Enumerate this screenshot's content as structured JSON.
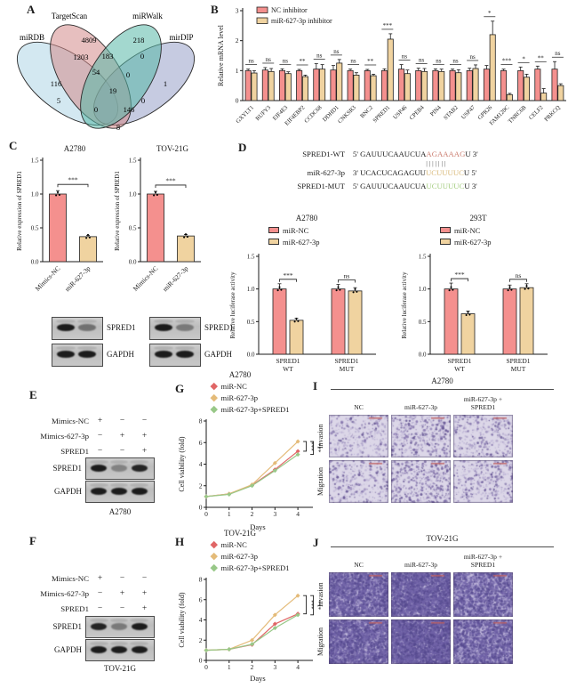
{
  "colors": {
    "pink": "#f4908e",
    "tan": "#f0d3a0",
    "line_nc": "#e06666",
    "line_mir": "#e4bb79",
    "line_spred": "#98c888",
    "venn_targetscan": "#d48a8a",
    "venn_mirwalk": "#58b8a8",
    "venn_mirdb": "#aed6e6",
    "venn_mirdip": "#98a0c8",
    "seq_red": "#cc7f72",
    "seq_tan": "#d9b877",
    "seq_green": "#a3cc7e",
    "scalebar": "#c06060"
  },
  "panelA": {
    "label": "A",
    "sets": {
      "targetscan": "TargetScan",
      "mirwalk": "miRWalk",
      "mirdb": "miRDB",
      "mirdip": "mirDIP"
    },
    "counts": {
      "ts": "4809",
      "walk": "218",
      "ts_db": "1203",
      "ts_walk": "183",
      "walk_dip": "0",
      "db": "116",
      "ts_db_walk": "54",
      "ts_walk_dip": "0",
      "dip": "1",
      "all": "19",
      "db_walk": "5",
      "db_walk_dip": "0",
      "ts_db_dip": "146",
      "ts_dip": "0",
      "db_dip": "8"
    }
  },
  "panelB": {
    "label": "B",
    "chart": {
      "type": "bar",
      "ylabel": "Relative mRNA level",
      "ylim": [
        0,
        3
      ],
      "yticks": [
        0,
        1,
        2,
        3
      ],
      "categories": [
        "GXYLT1",
        "RUFY3",
        "EIF4E3",
        "EIF4EBP2",
        "CCDC68",
        "DDHD1",
        "CNKSR3",
        "BNC2",
        "SPRED1",
        "USP46",
        "CPEB4",
        "PIN4",
        "STAB2",
        "USP47",
        "GPR26",
        "FAM120C",
        "TNRC6B",
        "CELF2",
        "PRKCQ"
      ],
      "series": [
        {
          "name": "NC inhibitor",
          "color": "pink",
          "values": [
            1.0,
            1.02,
            1.0,
            1.0,
            1.05,
            1.02,
            1.0,
            1.0,
            1.0,
            1.05,
            1.0,
            1.0,
            1.0,
            1.0,
            1.05,
            1.0,
            1.0,
            1.05,
            1.05
          ],
          "errors": [
            0.05,
            0.08,
            0.06,
            0.04,
            0.18,
            0.15,
            0.05,
            0.04,
            0.06,
            0.15,
            0.08,
            0.06,
            0.05,
            0.08,
            0.12,
            0.05,
            0.12,
            0.1,
            0.25
          ]
        },
        {
          "name": "miR-627-3p inhibitor",
          "color": "tan",
          "values": [
            0.92,
            0.97,
            0.9,
            0.8,
            1.05,
            1.25,
            0.85,
            0.83,
            2.05,
            0.9,
            0.97,
            0.97,
            0.93,
            1.07,
            2.2,
            0.2,
            0.78,
            0.25,
            0.5
          ],
          "errors": [
            0.08,
            0.1,
            0.06,
            0.05,
            0.15,
            0.12,
            0.08,
            0.05,
            0.18,
            0.12,
            0.1,
            0.08,
            0.1,
            0.12,
            0.45,
            0.04,
            0.1,
            0.15,
            0.06
          ]
        }
      ],
      "sig": [
        "ns",
        "ns",
        "ns",
        "**",
        "ns",
        "ns",
        "ns",
        "**",
        "***",
        "ns",
        "ns",
        "ns",
        "ns",
        "ns",
        "*",
        "***",
        "*",
        "**",
        "ns"
      ]
    }
  },
  "panelC": {
    "label": "C",
    "charts": [
      {
        "type": "bar",
        "title": "A2780",
        "ylabel": "Relative expression of SPRED1",
        "ylim": [
          0,
          1.5
        ],
        "yticks": [
          0,
          0.5,
          1,
          1.5
        ],
        "categories": [
          "Mimics-NC",
          "miR-627-3p"
        ],
        "values": [
          1.0,
          0.37
        ],
        "errors": [
          0.05,
          0.02
        ],
        "colors": [
          "pink",
          "tan"
        ],
        "sig": "***"
      },
      {
        "type": "bar",
        "title": "TOV-21G",
        "ylabel": "Relative expression of SPRED1",
        "ylim": [
          0,
          1.5
        ],
        "yticks": [
          0,
          0.5,
          1,
          1.5
        ],
        "categories": [
          "Mimics-NC",
          "miR-627-3p"
        ],
        "values": [
          1.0,
          0.38
        ],
        "errors": [
          0.04,
          0.02
        ],
        "colors": [
          "pink",
          "tan"
        ],
        "sig": "***"
      }
    ],
    "blots": [
      {
        "rows": [
          {
            "label": "SPRED1",
            "bands": [
              0.95,
              0.45
            ]
          },
          {
            "label": "GAPDH",
            "bands": [
              0.95,
              0.95
            ]
          }
        ]
      },
      {
        "rows": [
          {
            "label": "SPRED1",
            "bands": [
              0.95,
              0.4
            ]
          },
          {
            "label": "GAPDH",
            "bands": [
              0.95,
              0.95
            ]
          }
        ]
      }
    ]
  },
  "panelD": {
    "label": "D",
    "sequences": [
      {
        "name": "SPRED1-WT",
        "prefix": "5' GAUUUCAAUCUA",
        "highlight": "AGAAAAG",
        "suffix": "U 3'",
        "color_key": "seq_red"
      },
      {
        "name": "miR-627-3p",
        "prefix": "3' UCACUCAGAGUU",
        "highlight": "UCUUUUC",
        "suffix": "U 5'",
        "color_key": "seq_tan"
      },
      {
        "name": "SPRED1-MUT",
        "prefix": "5' GAUUUCAAUCUA",
        "highlight": "UCUUUUC",
        "suffix": "U 3'",
        "color_key": "seq_green"
      }
    ],
    "pairing": "|||||||",
    "charts": [
      {
        "type": "bar",
        "title": "A2780",
        "ylabel": "Relative luciferase activity",
        "ylim": [
          0,
          1.5
        ],
        "yticks": [
          0,
          0.5,
          1,
          1.5
        ],
        "groups": [
          "SPRED1 WT",
          "SPRED1 MUT"
        ],
        "group_lines": [
          [
            "SPRED1",
            "WT"
          ],
          [
            "SPRED1",
            "MUT"
          ]
        ],
        "series": [
          {
            "name": "miR-NC",
            "color": "pink",
            "values": [
              1.0,
              1.0
            ],
            "errors": [
              0.08,
              0.07
            ]
          },
          {
            "name": "miR-627-3p",
            "color": "tan",
            "values": [
              0.52,
              0.97
            ],
            "errors": [
              0.03,
              0.05
            ]
          }
        ],
        "sig": [
          "***",
          "ns"
        ]
      },
      {
        "type": "bar",
        "title": "293T",
        "ylabel": "Relative luciferase activity",
        "ylim": [
          0,
          1.5
        ],
        "yticks": [
          0,
          0.5,
          1,
          1.5
        ],
        "groups": [
          "SPRED1 WT",
          "SPRED1 MUT"
        ],
        "group_lines": [
          [
            "SPRED1",
            "WT"
          ],
          [
            "SPRED1",
            "MUT"
          ]
        ],
        "series": [
          {
            "name": "miR-NC",
            "color": "pink",
            "values": [
              1.0,
              1.0
            ],
            "errors": [
              0.09,
              0.06
            ]
          },
          {
            "name": "miR-627-3p",
            "color": "tan",
            "values": [
              0.62,
              1.02
            ],
            "errors": [
              0.04,
              0.06
            ]
          }
        ],
        "sig": [
          "***",
          "ns"
        ]
      }
    ]
  },
  "panelE": {
    "label": "E",
    "rows": [
      {
        "label": "Mimics-NC",
        "signs": [
          "+",
          "−",
          "−"
        ]
      },
      {
        "label": "Mimics-627-3p",
        "signs": [
          "−",
          "+",
          "+"
        ]
      },
      {
        "label": "SPRED1",
        "signs": [
          "−",
          "−",
          "+"
        ]
      }
    ],
    "blot_rows": [
      {
        "label": "SPRED1",
        "bands": [
          0.95,
          0.35,
          0.9
        ]
      },
      {
        "label": "GAPDH",
        "bands": [
          0.95,
          0.95,
          0.95
        ]
      }
    ],
    "cell_line": "A2780"
  },
  "panelF": {
    "label": "F",
    "rows": [
      {
        "label": "Mimics-NC",
        "signs": [
          "+",
          "−",
          "−"
        ]
      },
      {
        "label": "Mimics-627-3p",
        "signs": [
          "−",
          "+",
          "+"
        ]
      },
      {
        "label": "SPRED1",
        "signs": [
          "−",
          "−",
          "+"
        ]
      }
    ],
    "blot_rows": [
      {
        "label": "SPRED1",
        "bands": [
          0.9,
          0.4,
          0.95
        ]
      },
      {
        "label": "GAPDH",
        "bands": [
          0.95,
          0.95,
          0.95
        ]
      }
    ],
    "cell_line": "TOV-21G"
  },
  "panelG": {
    "label": "G",
    "chart": {
      "type": "line",
      "title": "A2780",
      "xlabel": "Days",
      "ylabel": "Cell viability (fold)",
      "xlim": [
        0,
        4.5
      ],
      "ylim": [
        0,
        8
      ],
      "xticks": [
        0,
        1,
        2,
        3,
        4
      ],
      "yticks": [
        0,
        2,
        4,
        6,
        8
      ],
      "x": [
        0,
        1,
        2,
        3,
        4
      ],
      "series": [
        {
          "name": "miR-NC",
          "color": "line_nc",
          "values": [
            1.0,
            1.25,
            2.05,
            3.5,
            5.2
          ]
        },
        {
          "name": "miR-627-3p",
          "color": "line_mir",
          "values": [
            1.0,
            1.25,
            2.1,
            4.1,
            6.1
          ]
        },
        {
          "name": "miR-627-3p+SPRED1",
          "color": "line_spred",
          "values": [
            1.0,
            1.2,
            2.0,
            3.4,
            4.9
          ]
        }
      ],
      "sig": [
        "***",
        "***"
      ]
    }
  },
  "panelH": {
    "label": "H",
    "chart": {
      "type": "line",
      "title": "TOV-21G",
      "xlabel": "Days",
      "ylabel": "Cell viability (fold)",
      "xlim": [
        0,
        4.5
      ],
      "ylim": [
        0,
        8
      ],
      "xticks": [
        0,
        1,
        2,
        3,
        4
      ],
      "yticks": [
        0,
        2,
        4,
        6,
        8
      ],
      "x": [
        0,
        1,
        2,
        3,
        4
      ],
      "series": [
        {
          "name": "miR-NC",
          "color": "line_nc",
          "values": [
            1.0,
            1.1,
            1.55,
            3.6,
            4.6
          ]
        },
        {
          "name": "miR-627-3p",
          "color": "line_mir",
          "values": [
            1.0,
            1.1,
            2.0,
            4.5,
            6.4
          ]
        },
        {
          "name": "miR-627-3p+SPRED1",
          "color": "line_spred",
          "values": [
            1.0,
            1.1,
            1.6,
            3.2,
            4.5
          ]
        }
      ],
      "sig": [
        "***",
        "***"
      ]
    }
  },
  "panelI": {
    "label": "I",
    "title": "A2780",
    "columns": [
      {
        "l1": "",
        "l2": "NC"
      },
      {
        "l1": "",
        "l2": "miR-627-3p"
      },
      {
        "l1": "miR-627-3p +",
        "l2": "SPRED1"
      }
    ],
    "rows": [
      "Invasion",
      "Migration"
    ],
    "density": [
      [
        150,
        270,
        185
      ],
      [
        165,
        340,
        205
      ]
    ],
    "bg": "#dcd7e8",
    "dot_colors": [
      "#8878b0",
      "#655594",
      "#a79ac8"
    ],
    "base_noise": 250
  },
  "panelJ": {
    "label": "J",
    "title": "TOV-21G",
    "columns": [
      {
        "l1": "",
        "l2": "NC"
      },
      {
        "l1": "",
        "l2": "miR-627-3p"
      },
      {
        "l1": "miR-627-3p +",
        "l2": "SPRED1"
      }
    ],
    "rows": [
      "Invasion",
      "Migration"
    ],
    "density": [
      [
        1900,
        2700,
        1300
      ],
      [
        2100,
        3100,
        1500
      ]
    ],
    "bg": "#c6bede",
    "dot_colors": [
      "#7163a8",
      "#574b90",
      "#8d81bd"
    ],
    "base_noise": 2200
  }
}
